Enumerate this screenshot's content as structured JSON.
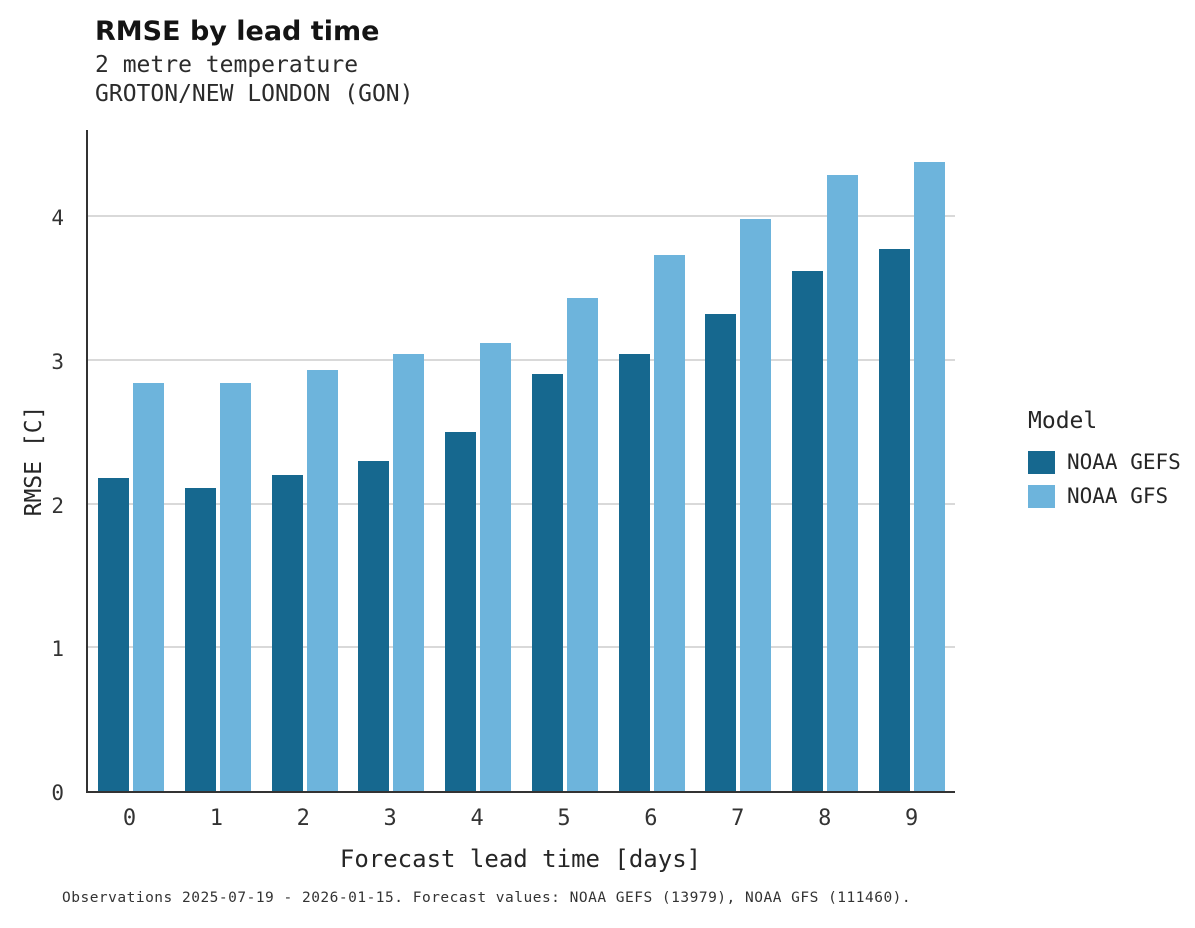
{
  "title": "RMSE by lead time",
  "subtitle_line1": "2 metre temperature",
  "subtitle_line2": "GROTON/NEW LONDON (GON)",
  "caption": "Observations 2025-07-19 - 2026-01-15. Forecast values: NOAA GEFS (13979), NOAA GFS (111460).",
  "legend": {
    "title": "Model",
    "entries": [
      {
        "label": "NOAA GEFS",
        "color": "#16688f"
      },
      {
        "label": "NOAA GFS",
        "color": "#6db4dc"
      }
    ]
  },
  "chart_data": {
    "type": "bar",
    "title": "RMSE by lead time",
    "subtitle": "2 metre temperature — GROTON/NEW LONDON (GON)",
    "xlabel": "Forecast lead time [days]",
    "ylabel": "RMSE [C]",
    "categories": [
      "0",
      "1",
      "2",
      "3",
      "4",
      "5",
      "6",
      "7",
      "8",
      "9"
    ],
    "series": [
      {
        "name": "NOAA GEFS",
        "color": "#16688f",
        "values": [
          2.18,
          2.11,
          2.2,
          2.3,
          2.5,
          2.9,
          3.04,
          3.32,
          3.62,
          3.77
        ]
      },
      {
        "name": "NOAA GFS",
        "color": "#6db4dc",
        "values": [
          2.84,
          2.84,
          2.93,
          3.04,
          3.12,
          3.43,
          3.73,
          3.98,
          4.29,
          4.38
        ]
      }
    ],
    "ylim": [
      0,
      4.6
    ],
    "yticks": [
      0,
      1,
      2,
      3,
      4
    ],
    "grid": true,
    "legend_position": "right",
    "legend_title": "Model"
  }
}
